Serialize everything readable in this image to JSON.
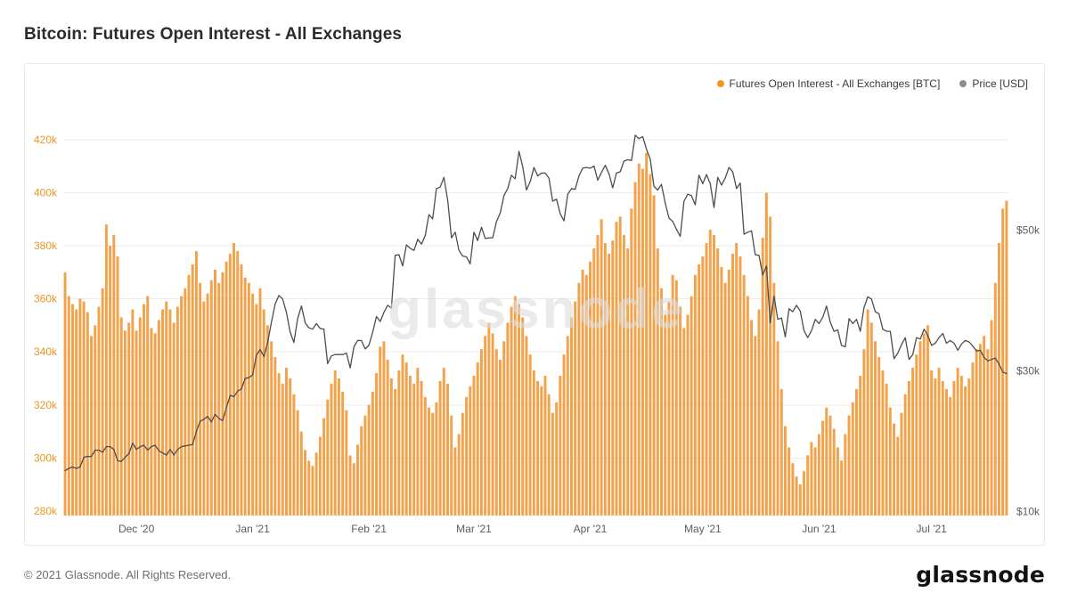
{
  "page": {
    "title": "Bitcoin: Futures Open Interest - All Exchanges",
    "watermark": "glassnode",
    "footer": {
      "copyright": "© 2021 Glassnode. All Rights Reserved.",
      "brand": "glassnode"
    }
  },
  "legend": [
    {
      "label": "Futures Open Interest - All Exchanges [BTC]",
      "color": "#f7941e"
    },
    {
      "label": "Price [USD]",
      "color": "#8c8c8c"
    }
  ],
  "colors": {
    "bar": "#f3a24a",
    "price_line": "#4d4d4d",
    "left_axis_text": "#ee9420",
    "right_axis_text": "#5c5c5c",
    "x_axis_text": "#5c5c5c",
    "grid": "#ececec",
    "watermark": "#dcdcdc",
    "card_border": "#e8e8e8"
  },
  "chart_data": {
    "type": "bar+line",
    "title": "Bitcoin: Futures Open Interest - All Exchanges",
    "x_start_date": "2020-11-12",
    "x_interval": "daily",
    "grid": "horizontal",
    "legend_position": "top-right",
    "x_ticks": [
      {
        "label": "Dec '20",
        "day_index": 19
      },
      {
        "label": "Jan '21",
        "day_index": 50
      },
      {
        "label": "Feb '21",
        "day_index": 81
      },
      {
        "label": "Mar '21",
        "day_index": 109
      },
      {
        "label": "Apr '21",
        "day_index": 140
      },
      {
        "label": "May '21",
        "day_index": 170
      },
      {
        "label": "Jun '21",
        "day_index": 201
      },
      {
        "label": "Jul '21",
        "day_index": 231
      }
    ],
    "left_axis": {
      "series": "Futures Open Interest - All Exchanges [BTC]",
      "unit": "BTC",
      "range_k": [
        278.3,
        427
      ],
      "ticks": [
        {
          "value_k": 280,
          "label": "280k"
        },
        {
          "value_k": 300,
          "label": "300k"
        },
        {
          "value_k": 320,
          "label": "320k"
        },
        {
          "value_k": 340,
          "label": "340k"
        },
        {
          "value_k": 360,
          "label": "360k"
        },
        {
          "value_k": 380,
          "label": "380k"
        },
        {
          "value_k": 400,
          "label": "400k"
        },
        {
          "value_k": 420,
          "label": "420k"
        }
      ]
    },
    "right_axis": {
      "series": "Price [USD]",
      "unit": "USD",
      "range_k": [
        9.4,
        65.5
      ],
      "ticks": [
        {
          "value_k": 10,
          "label": "$10k"
        },
        {
          "value_k": 30,
          "label": "$30k"
        },
        {
          "value_k": 50,
          "label": "$50k"
        }
      ]
    },
    "series": [
      {
        "name": "Futures Open Interest - All Exchanges [BTC]",
        "type": "bar",
        "axis": "left",
        "unit": "thousand BTC (estimated daily values)",
        "values": [
          370,
          361,
          358,
          356,
          360,
          359,
          355,
          346,
          350,
          357,
          364,
          388,
          380,
          384,
          376,
          353,
          348,
          351,
          356,
          348,
          353,
          358,
          361,
          349,
          347,
          352,
          356,
          359,
          356,
          351,
          357,
          361,
          364,
          369,
          373,
          378,
          366,
          359,
          362,
          367,
          371,
          366,
          370,
          374,
          377,
          381,
          378,
          373,
          368,
          366,
          362,
          358,
          364,
          356,
          350,
          344,
          338,
          332,
          328,
          334,
          330,
          324,
          318,
          310,
          303,
          299,
          297,
          302,
          308,
          315,
          322,
          328,
          333,
          330,
          325,
          318,
          301,
          298,
          305,
          312,
          316,
          320,
          325,
          332,
          342,
          344,
          337,
          330,
          326,
          333,
          339,
          336,
          331,
          328,
          334,
          329,
          323,
          319,
          317,
          321,
          329,
          334,
          328,
          316,
          304,
          309,
          317,
          323,
          327,
          331,
          336,
          341,
          346,
          351,
          347,
          341,
          337,
          344,
          351,
          357,
          361,
          358,
          353,
          346,
          339,
          333,
          329,
          327,
          331,
          324,
          317,
          321,
          331,
          339,
          346,
          353,
          359,
          366,
          371,
          369,
          374,
          379,
          384,
          390,
          381,
          377,
          382,
          389,
          391,
          384,
          379,
          394,
          404,
          411,
          409,
          415,
          407,
          399,
          379,
          364,
          354,
          359,
          369,
          367,
          357,
          349,
          354,
          361,
          369,
          373,
          376,
          381,
          386,
          384,
          379,
          372,
          366,
          371,
          377,
          381,
          376,
          369,
          361,
          352,
          346,
          356,
          383,
          400,
          391,
          366,
          344,
          326,
          312,
          304,
          298,
          293,
          290,
          295,
          301,
          306,
          304,
          309,
          314,
          319,
          316,
          311,
          304,
          299,
          309,
          316,
          321,
          326,
          331,
          341,
          356,
          351,
          344,
          338,
          333,
          328,
          319,
          313,
          308,
          317,
          324,
          329,
          334,
          339,
          344,
          347,
          350,
          333,
          330,
          334,
          329,
          326,
          323,
          329,
          334,
          331,
          327,
          330,
          336,
          341,
          343,
          346,
          341,
          352,
          366,
          381,
          394,
          397
        ]
      },
      {
        "name": "Price [USD]",
        "type": "line",
        "axis": "right",
        "unit": "thousand USD (estimated daily values)",
        "values": [
          15.8,
          16.1,
          16.3,
          16.1,
          16.3,
          17.7,
          17.8,
          17.8,
          18.7,
          18.7,
          18.4,
          19.2,
          19.2,
          18.8,
          17.2,
          17.1,
          17.7,
          18.2,
          19.7,
          18.8,
          19.2,
          19.4,
          18.7,
          19.2,
          19.4,
          18.6,
          18.3,
          18.0,
          18.8,
          18.0,
          18.8,
          19.2,
          19.3,
          19.4,
          19.5,
          21.4,
          22.8,
          23.1,
          23.5,
          22.7,
          23.8,
          23.2,
          22.9,
          24.7,
          26.5,
          26.3,
          27.1,
          27.4,
          28.9,
          29.0,
          29.4,
          32.2,
          33.0,
          32.0,
          34.0,
          36.9,
          39.5,
          40.7,
          40.2,
          38.3,
          35.5,
          34.0,
          37.4,
          39.2,
          36.8,
          36.1,
          35.9,
          36.7,
          36.0,
          35.9,
          31.0,
          32.1,
          32.3,
          32.3,
          32.3,
          32.5,
          30.4,
          33.4,
          34.3,
          34.3,
          33.1,
          33.6,
          35.5,
          37.7,
          37.0,
          38.3,
          39.3,
          38.9,
          46.4,
          46.5,
          44.9,
          47.9,
          47.4,
          47.1,
          48.7,
          48.0,
          49.2,
          52.2,
          51.6,
          55.9,
          56.1,
          57.5,
          54.2,
          48.9,
          49.7,
          47.1,
          46.3,
          46.2,
          45.2,
          49.7,
          48.5,
          50.4,
          48.8,
          48.9,
          48.9,
          51.2,
          52.4,
          54.9,
          55.9,
          57.8,
          57.3,
          61.2,
          59.0,
          55.7,
          56.9,
          58.9,
          57.7,
          58.1,
          58.1,
          57.4,
          54.1,
          54.4,
          52.3,
          51.3,
          55.1,
          55.9,
          55.8,
          57.7,
          58.8,
          58.9,
          58.8,
          59.1,
          57.1,
          58.2,
          59.2,
          58.0,
          56.0,
          58.1,
          58.3,
          59.8,
          60.0,
          59.9,
          63.5,
          63.0,
          63.3,
          61.5,
          60.1,
          56.2,
          55.7,
          56.5,
          53.8,
          51.7,
          51.2,
          50.1,
          49.1,
          54.1,
          55.1,
          54.9,
          53.6,
          57.8,
          56.6,
          57.9,
          56.6,
          53.2,
          57.5,
          56.4,
          57.4,
          58.9,
          58.3,
          55.9,
          56.7,
          49.4,
          49.7,
          49.9,
          46.5,
          46.4,
          43.6,
          44.9,
          36.8,
          40.6,
          37.3,
          37.5,
          34.8,
          38.8,
          38.4,
          39.3,
          38.5,
          35.7,
          34.7,
          35.7,
          37.3,
          36.7,
          37.6,
          39.2,
          36.9,
          35.6,
          35.8,
          33.6,
          33.4,
          37.4,
          36.7,
          37.3,
          35.6,
          39.0,
          40.5,
          40.2,
          38.4,
          38.1,
          35.9,
          35.6,
          35.6,
          31.7,
          32.5,
          33.7,
          34.7,
          31.6,
          32.3,
          34.7,
          34.5,
          35.9,
          35.0,
          33.6,
          33.9,
          34.7,
          35.3,
          33.9,
          34.3,
          33.9,
          32.9,
          33.8,
          34.3,
          34.1,
          33.5,
          32.8,
          32.9,
          31.9,
          31.4,
          31.6,
          31.8,
          30.9,
          29.8,
          29.6
        ]
      }
    ]
  }
}
